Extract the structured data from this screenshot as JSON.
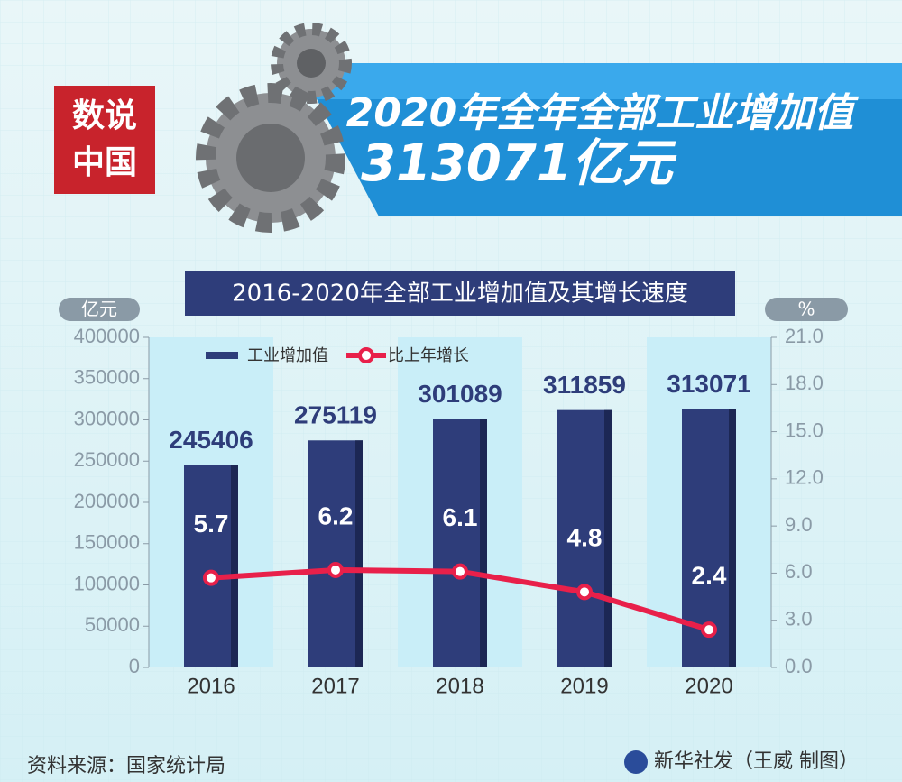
{
  "header": {
    "title": "2020年全年全部工业增加值",
    "subtitle": "313071亿元",
    "stamp": [
      "数说",
      "中国"
    ]
  },
  "chart_data": {
    "type": "bar",
    "title": "2016-2020年全部工业增加值及其增长速度",
    "ylabel": "亿元",
    "y2label": "%",
    "categories": [
      "2016",
      "2017",
      "2018",
      "2019",
      "2020"
    ],
    "series": [
      {
        "name": "工业增加值",
        "type": "bar",
        "color": "#2e3d7a",
        "values": [
          245406,
          275119,
          301089,
          311859,
          313071
        ]
      },
      {
        "name": "比上年增长",
        "type": "line",
        "color": "#e8204a",
        "axis": "y2",
        "values": [
          5.7,
          6.2,
          6.1,
          4.8,
          2.4
        ]
      }
    ],
    "ylim": [
      0,
      400000
    ],
    "yticks": [
      0,
      50000,
      100000,
      150000,
      200000,
      250000,
      300000,
      350000,
      400000
    ],
    "y2lim": [
      0,
      21
    ],
    "y2ticks": [
      {
        "value": 0,
        "label": "0.0"
      },
      {
        "value": 3,
        "label": "3.0"
      },
      {
        "value": 6,
        "label": "6.0"
      },
      {
        "value": 9,
        "label": "9.0"
      },
      {
        "value": 12,
        "label": "12.0"
      },
      {
        "value": 15,
        "label": "15.0"
      },
      {
        "value": 18,
        "label": "18.0"
      },
      {
        "value": 21,
        "label": "21.0"
      }
    ],
    "legend": "top-left"
  },
  "footer": {
    "source": "资料来源：国家统计局",
    "credit": "新华社发（王威 制图）"
  }
}
